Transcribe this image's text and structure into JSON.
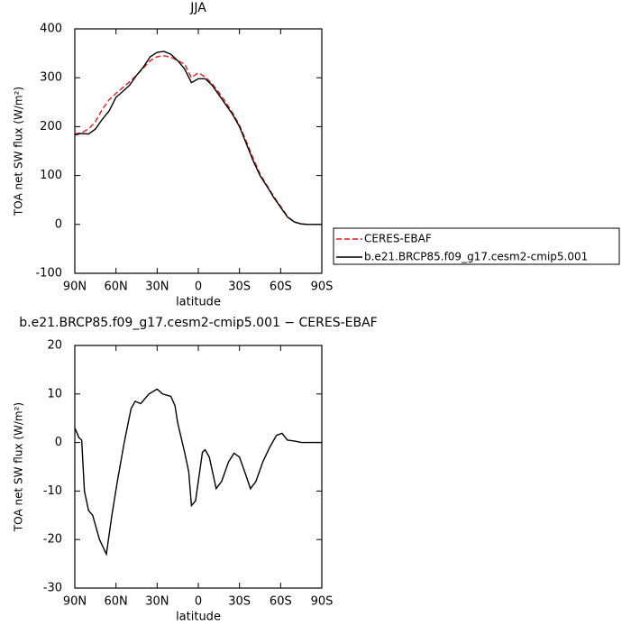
{
  "chart_data": [
    {
      "type": "line",
      "title": "JJA",
      "xlabel": "latitude",
      "ylabel": "TOA net SW flux (W/m²)",
      "x": [
        90,
        85,
        80,
        75,
        70,
        65,
        60,
        55,
        50,
        45,
        40,
        35,
        30,
        25,
        20,
        15,
        10,
        5,
        0,
        -5,
        -10,
        -15,
        -20,
        -25,
        -30,
        -35,
        -40,
        -45,
        -50,
        -55,
        -60,
        -65,
        -70,
        -75,
        -80,
        -85,
        -90
      ],
      "series": [
        {
          "name": "CERES-EBAF",
          "color": "#e41a1c",
          "line_style": "dashed",
          "values": [
            185,
            188,
            195,
            210,
            235,
            255,
            268,
            280,
            292,
            305,
            320,
            335,
            343,
            345,
            342,
            335,
            328,
            300,
            310,
            302,
            288,
            270,
            250,
            228,
            203,
            170,
            135,
            103,
            80,
            57,
            37,
            16,
            5,
            1,
            0,
            0,
            0
          ]
        },
        {
          "name": "b.e21.BRCP85.f09_g17.cesm2-cmip5.001",
          "color": "#000000",
          "line_style": "solid",
          "values": [
            183,
            186,
            185,
            195,
            215,
            232,
            260,
            272,
            285,
            305,
            322,
            343,
            352,
            354,
            348,
            335,
            318,
            290,
            298,
            298,
            285,
            265,
            245,
            225,
            200,
            165,
            130,
            100,
            78,
            55,
            35,
            15,
            5,
            1,
            0,
            0,
            0
          ]
        }
      ],
      "xlim": [
        90,
        -90
      ],
      "xticks": [
        {
          "value": 90,
          "label": "90N"
        },
        {
          "value": 60,
          "label": "60N"
        },
        {
          "value": 30,
          "label": "30N"
        },
        {
          "value": 0,
          "label": "0"
        },
        {
          "value": -30,
          "label": "30S"
        },
        {
          "value": -60,
          "label": "60S"
        },
        {
          "value": -90,
          "label": "90S"
        }
      ],
      "ylim": [
        -100,
        400
      ],
      "yticks": [
        -100,
        0,
        100,
        200,
        300,
        400
      ]
    },
    {
      "type": "line",
      "title": "b.e21.BRCP85.f09_g17.cesm2-cmip5.001 − CERES-EBAF",
      "xlabel": "latitude",
      "ylabel": "TOA net SW flux (W/m²)",
      "x": [
        90,
        87,
        85,
        83,
        80,
        77,
        75,
        72,
        67,
        63,
        59,
        54,
        49,
        46,
        42,
        36,
        30,
        26,
        20,
        17,
        15,
        10,
        7,
        5,
        2,
        0,
        -3,
        -5,
        -8,
        -13,
        -17,
        -22,
        -26,
        -30,
        -35,
        -38,
        -42,
        -47,
        -52,
        -57,
        -61,
        -63,
        -65,
        -70,
        -75,
        -80,
        -90
      ],
      "series": [
        {
          "color": "#000000",
          "line_style": "solid",
          "values": [
            3,
            1,
            0.5,
            -10,
            -14,
            -15,
            -17,
            -20,
            -23,
            -15,
            -8,
            0,
            7,
            8.5,
            8,
            10,
            11,
            10,
            9.5,
            7.6,
            4,
            -2,
            -6,
            -13,
            -12,
            -8,
            -2,
            -1.5,
            -3,
            -9.5,
            -8,
            -4,
            -2.2,
            -3,
            -7,
            -9.5,
            -8,
            -4,
            -1,
            1.5,
            1.9,
            1.2,
            0.5,
            0.3,
            0,
            0,
            0
          ]
        }
      ],
      "xlim": [
        90,
        -90
      ],
      "xticks": [
        {
          "value": 90,
          "label": "90N"
        },
        {
          "value": 60,
          "label": "60N"
        },
        {
          "value": 30,
          "label": "30N"
        },
        {
          "value": 0,
          "label": "0"
        },
        {
          "value": -30,
          "label": "30S"
        },
        {
          "value": -60,
          "label": "60S"
        },
        {
          "value": -90,
          "label": "90S"
        }
      ],
      "ylim": [
        -30,
        20
      ],
      "yticks": [
        -30,
        -20,
        -10,
        0,
        10,
        20
      ]
    }
  ]
}
